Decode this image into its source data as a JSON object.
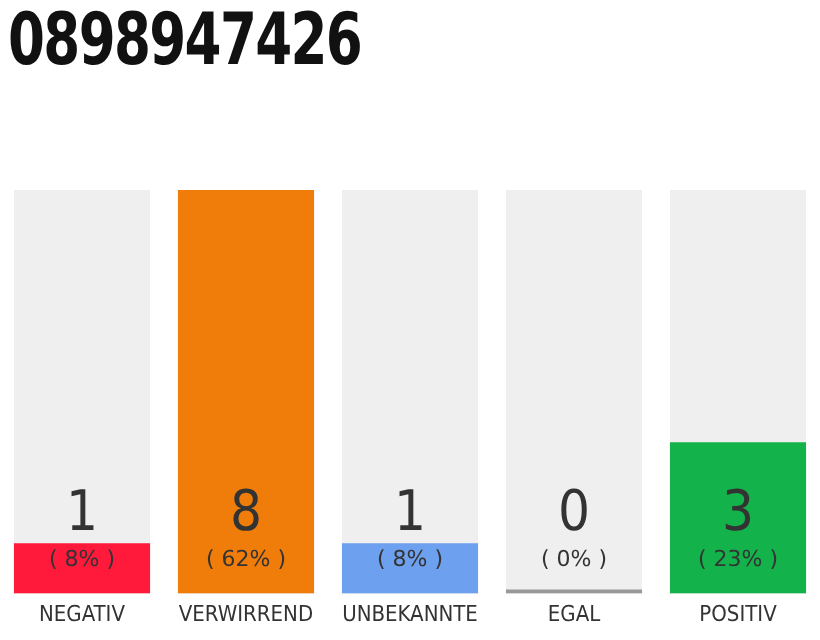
{
  "chart_data": {
    "type": "bar",
    "title": "0898947426",
    "categories": [
      "NEGATIV",
      "VERWIRREND",
      "UNBEKANNTE",
      "EGAL",
      "POSITIV"
    ],
    "values": [
      1,
      8,
      1,
      0,
      3
    ],
    "colors": [
      "#ff1a3c",
      "#f07d0a",
      "#6ea0f0",
      "#999999",
      "#13b24a"
    ],
    "value_labels": [
      "1\n( 8% )",
      "8\n( 62% )",
      "1\n( 8% )",
      "0\n( 0% )",
      "3\n( 23% )"
    ],
    "ylim": [
      0,
      8
    ],
    "grid": false,
    "legend": false
  }
}
